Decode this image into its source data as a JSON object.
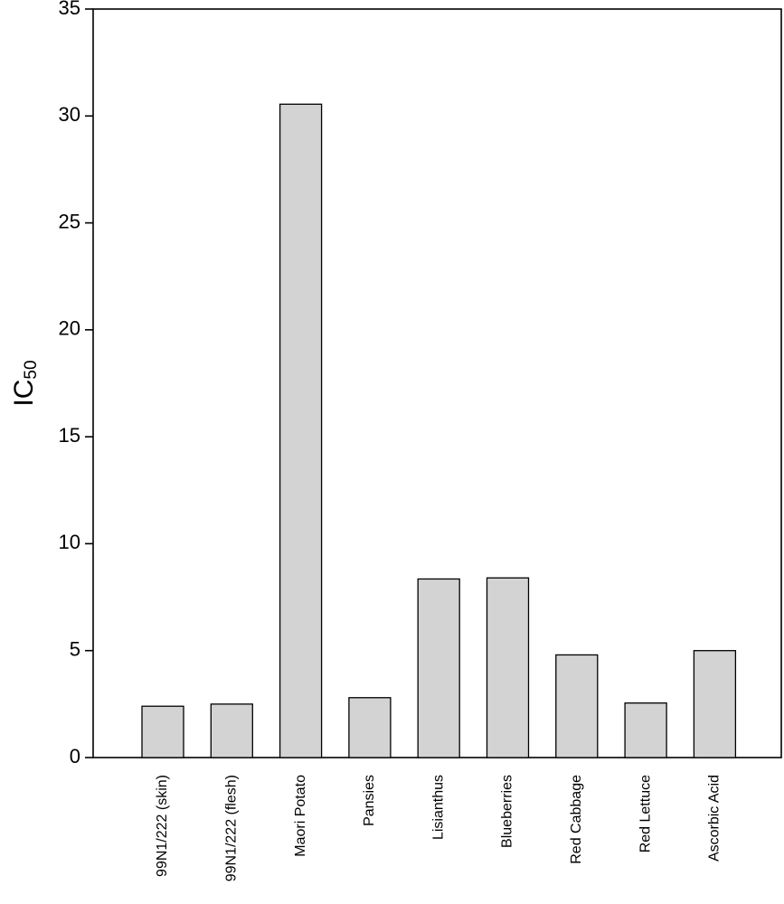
{
  "chart_data": {
    "type": "bar",
    "title": "",
    "xlabel": "",
    "ylabel": "IC",
    "ylabel_subscript": "50",
    "categories": [
      "99N1/222 (skin)",
      "99N1/222 (flesh)",
      "Maori Potato",
      "Pansies",
      "Lisianthus",
      "Blueberries",
      "Red Cabbage",
      "Red Lettuce",
      "Ascorbic Acid"
    ],
    "values": [
      2.4,
      2.5,
      30.55,
      2.8,
      8.35,
      8.4,
      4.8,
      2.55,
      5.0
    ],
    "ylim": [
      0,
      35
    ],
    "yticks": [
      0,
      5,
      10,
      15,
      20,
      25,
      30,
      35
    ],
    "ytick_labels": [
      "0",
      "5",
      "10",
      "15",
      "20",
      "25",
      "30",
      "35"
    ],
    "grid": false,
    "legend": "none",
    "bar_color": "#d3d3d3",
    "edge_color": "#000000"
  }
}
